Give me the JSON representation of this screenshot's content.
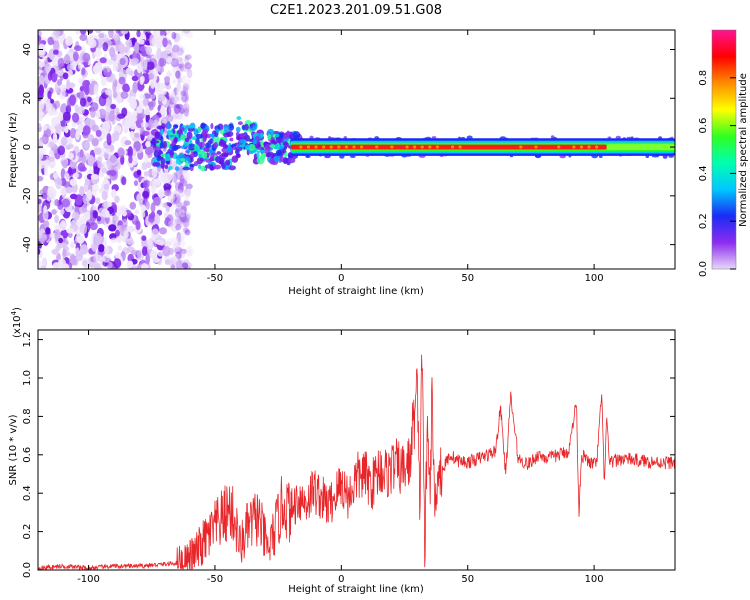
{
  "title": "C2E1.2023.201.09.51.G08",
  "colors": {
    "snr_line": "#e8262a",
    "axis": "#000000"
  },
  "chart_data": [
    {
      "type": "heatmap",
      "title": "C2E1.2023.201.09.51.G08",
      "xlabel": "Height of straight line (km)",
      "ylabel": "Frequency (Hz)",
      "xlim": [
        -120,
        132
      ],
      "ylim": [
        -50,
        48
      ],
      "xticks": [
        -100,
        -50,
        0,
        50,
        100
      ],
      "xtick_labels": [
        "-100",
        "-50",
        "0",
        "50",
        "100"
      ],
      "yticks": [
        -40,
        -20,
        0,
        20,
        40
      ],
      "ytick_labels": [
        "-40",
        "-20",
        "0",
        "20",
        "40"
      ],
      "noise_region_km": [
        -120,
        -60
      ],
      "dominant_frequency_hz": 0,
      "colorbar": {
        "label": "Normalized spectral amplitude",
        "range": [
          0,
          1
        ],
        "ticks": [
          0.0,
          0.2,
          0.4,
          0.6,
          0.8
        ],
        "tick_labels": [
          "0.0",
          "0.2",
          "0.4",
          "0.6",
          "0.8"
        ],
        "colormap": [
          "#e8d8f8",
          "#8c2cf0",
          "#1a2cf5",
          "#00c8ff",
          "#00ffb0",
          "#30ff20",
          "#ffff00",
          "#ff8c00",
          "#ff0000",
          "#ff1493"
        ]
      }
    },
    {
      "type": "line",
      "xlabel": "Height of straight line (km)",
      "ylabel": "SNR (10 * v/v)",
      "y_multiplier": "(x10",
      "y_multiplier_exp": "4",
      "y_multiplier_close": ")",
      "xlim": [
        -120,
        132
      ],
      "ylim": [
        0,
        1.25
      ],
      "xticks": [
        -100,
        -50,
        0,
        50,
        100
      ],
      "xtick_labels": [
        "-100",
        "-50",
        "0",
        "50",
        "100"
      ],
      "yticks": [
        0.0,
        0.2,
        0.4,
        0.6,
        0.8,
        1.0,
        1.2
      ],
      "ytick_labels": [
        "0.0",
        "0.2",
        "0.4",
        "0.6",
        "0.8",
        "1.0",
        "1.2"
      ],
      "series": [
        {
          "x": [
            -120,
            -110,
            -100,
            -90,
            -80,
            -70,
            -62,
            -58,
            -54,
            -50,
            -47,
            -44,
            -42,
            -40,
            -37,
            -33,
            -29,
            -26,
            -23,
            -20,
            -17,
            -14,
            -11,
            -8,
            -5,
            -2,
            0,
            3,
            6,
            9,
            12,
            15,
            18,
            21,
            24,
            27,
            30,
            31,
            32,
            33,
            34,
            35,
            36,
            37,
            38,
            40,
            43,
            46,
            50,
            54,
            58,
            61,
            63,
            65,
            67,
            70,
            74,
            78,
            82,
            86,
            90,
            93,
            94,
            95,
            98,
            101,
            103,
            104,
            105,
            106,
            108,
            112,
            118,
            125,
            132
          ],
          "y": [
            0.01,
            0.02,
            0.01,
            0.02,
            0.02,
            0.03,
            0.04,
            0.08,
            0.15,
            0.22,
            0.27,
            0.32,
            0.25,
            0.12,
            0.22,
            0.28,
            0.1,
            0.22,
            0.35,
            0.3,
            0.38,
            0.35,
            0.42,
            0.38,
            0.33,
            0.4,
            0.45,
            0.38,
            0.48,
            0.5,
            0.44,
            0.53,
            0.5,
            0.55,
            0.52,
            0.56,
            0.95,
            0.3,
            1.25,
            0.05,
            0.7,
            0.45,
            0.9,
            0.25,
            0.55,
            0.52,
            0.6,
            0.57,
            0.56,
            0.58,
            0.6,
            0.62,
            0.85,
            0.5,
            0.9,
            0.58,
            0.55,
            0.6,
            0.58,
            0.6,
            0.62,
            0.88,
            0.3,
            0.6,
            0.56,
            0.55,
            0.92,
            0.45,
            0.8,
            0.55,
            0.57,
            0.58,
            0.57,
            0.56,
            0.56
          ]
        }
      ]
    }
  ]
}
